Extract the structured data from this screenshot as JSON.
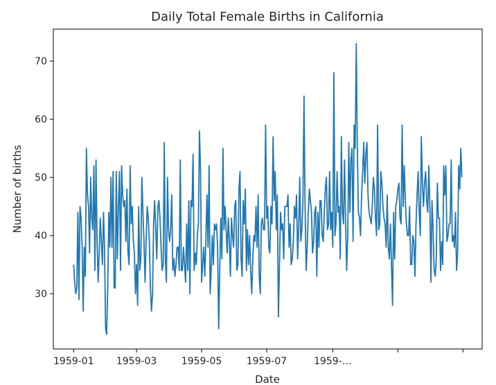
{
  "chart_data": {
    "type": "line",
    "title": "Daily Total Female Births in California",
    "xlabel": "Date",
    "ylabel": "Number of births",
    "x_range": [
      "1958-12-13",
      "1960-01-19"
    ],
    "ylim": [
      20.5,
      75.5
    ],
    "grid": false,
    "legend": "none",
    "x_ticks": [
      {
        "date": "1959-01-01",
        "label": "1959-01"
      },
      {
        "date": "1959-03-01",
        "label": "1959-03"
      },
      {
        "date": "1959-05-01",
        "label": "1959-05"
      },
      {
        "date": "1959-07-01",
        "label": "1959-07"
      },
      {
        "date": "1959-09-01",
        "label": "1959-…"
      },
      {
        "date": "1959-11-01",
        "label": ""
      },
      {
        "date": "1960-01-01",
        "label": ""
      }
    ],
    "y_ticks": [
      30,
      40,
      50,
      60,
      70
    ],
    "series": [
      {
        "color": "#1f77b4",
        "start_date": "1959-01-01",
        "values": [
          35,
          32,
          30,
          31,
          44,
          29,
          45,
          43,
          38,
          27,
          38,
          33,
          55,
          47,
          45,
          37,
          50,
          43,
          41,
          52,
          34,
          53,
          39,
          32,
          37,
          43,
          39,
          35,
          44,
          38,
          24,
          23,
          31,
          44,
          38,
          50,
          38,
          51,
          31,
          31,
          51,
          36,
          45,
          51,
          34,
          52,
          47,
          45,
          46,
          39,
          48,
          37,
          35,
          52,
          42,
          45,
          39,
          37,
          30,
          35,
          28,
          45,
          34,
          36,
          50,
          44,
          39,
          32,
          39,
          45,
          43,
          39,
          31,
          27,
          30,
          42,
          46,
          41,
          36,
          45,
          46,
          43,
          38,
          34,
          35,
          56,
          36,
          32,
          50,
          41,
          39,
          41,
          47,
          34,
          36,
          33,
          35,
          38,
          38,
          34,
          53,
          34,
          34,
          38,
          35,
          32,
          42,
          34,
          46,
          30,
          46,
          45,
          54,
          34,
          37,
          35,
          40,
          42,
          58,
          51,
          32,
          35,
          38,
          33,
          39,
          47,
          38,
          52,
          30,
          34,
          40,
          35,
          42,
          41,
          42,
          38,
          24,
          34,
          43,
          36,
          55,
          41,
          45,
          41,
          37,
          43,
          39,
          33,
          43,
          40,
          38,
          45,
          46,
          34,
          35,
          48,
          51,
          36,
          33,
          46,
          42,
          48,
          34,
          41,
          35,
          40,
          34,
          30,
          36,
          40,
          39,
          45,
          38,
          47,
          33,
          30,
          42,
          43,
          41,
          41,
          59,
          43,
          45,
          38,
          37,
          45,
          42,
          57,
          46,
          51,
          41,
          47,
          26,
          35,
          44,
          41,
          42,
          36,
          45,
          45,
          45,
          47,
          38,
          42,
          35,
          36,
          39,
          45,
          43,
          47,
          36,
          41,
          50,
          39,
          41,
          46,
          64,
          45,
          34,
          38,
          44,
          48,
          46,
          44,
          37,
          39,
          44,
          45,
          33,
          44,
          38,
          46,
          46,
          40,
          39,
          44,
          48,
          50,
          41,
          42,
          51,
          41,
          44,
          38,
          68,
          40,
          42,
          51,
          44,
          45,
          36,
          57,
          44,
          42,
          53,
          42,
          34,
          40,
          56,
          44,
          53,
          55,
          39,
          59,
          55,
          73,
          55,
          44,
          43,
          40,
          47,
          51,
          56,
          49,
          54,
          56,
          47,
          44,
          43,
          42,
          45,
          50,
          48,
          43,
          40,
          59,
          41,
          42,
          51,
          49,
          45,
          43,
          42,
          38,
          47,
          38,
          36,
          42,
          35,
          28,
          44,
          36,
          45,
          46,
          48,
          49,
          43,
          42,
          59,
          45,
          52,
          46,
          42,
          40,
          40,
          45,
          35,
          35,
          40,
          39,
          33,
          42,
          47,
          51,
          44,
          40,
          57,
          49,
          45,
          49,
          51,
          46,
          44,
          52,
          45,
          32,
          46,
          41,
          34,
          33,
          36,
          49,
          43,
          43,
          34,
          39,
          35,
          52,
          47,
          52,
          39,
          40,
          42,
          42,
          53,
          39,
          40,
          38,
          44,
          34,
          37,
          52,
          48,
          55,
          50
        ]
      }
    ]
  }
}
